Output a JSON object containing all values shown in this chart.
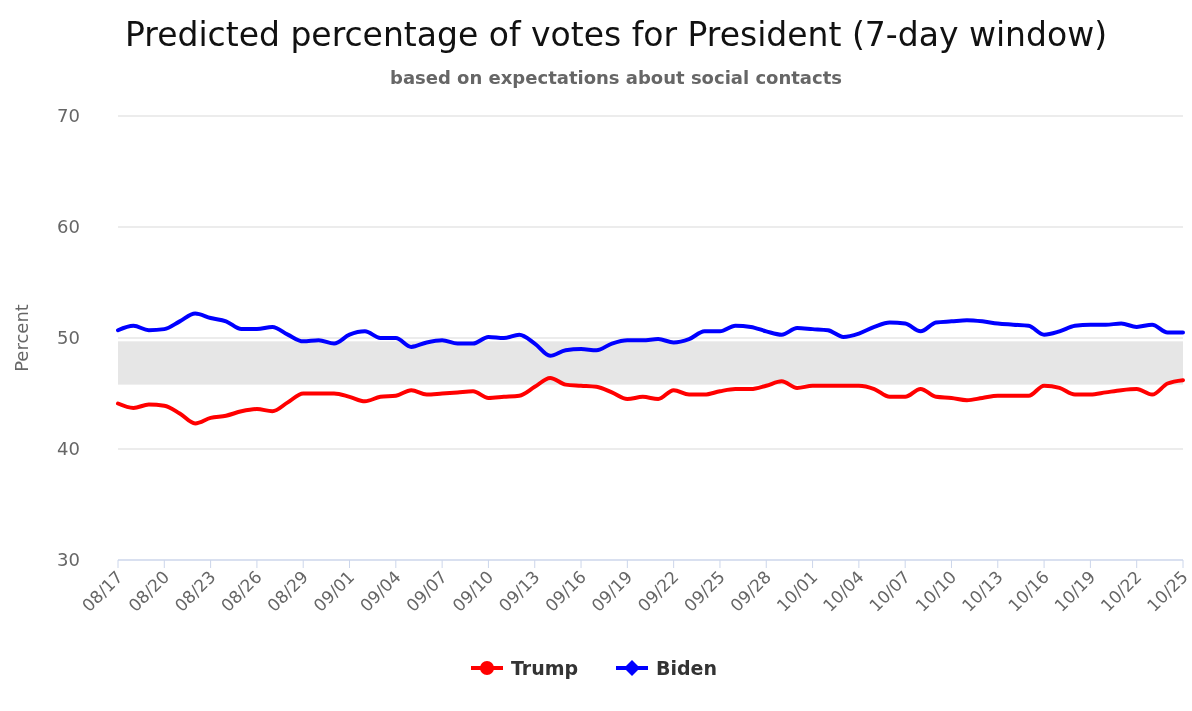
{
  "chart_data": {
    "type": "line",
    "title": "Predicted percentage of votes for President (7-day window)",
    "subtitle": "based on expectations about social contacts",
    "ylabel": "Percent",
    "x": [
      "--08-17",
      "--08-18",
      "--08-19",
      "--08-20",
      "--08-21",
      "--08-22",
      "--08-23",
      "--08-24",
      "--08-25",
      "--08-26",
      "--08-27",
      "--08-28",
      "--08-29",
      "--08-30",
      "--08-31",
      "--09-01",
      "--09-02",
      "--09-03",
      "--09-04",
      "--09-05",
      "--09-06",
      "--09-07",
      "--09-08",
      "--09-09",
      "--09-10",
      "--09-11",
      "--09-12",
      "--09-13",
      "--09-14",
      "--09-15",
      "--09-16",
      "--09-17",
      "--09-18",
      "--09-19",
      "--09-20",
      "--09-21",
      "--09-22",
      "--09-23",
      "--09-24",
      "--09-25",
      "--09-26",
      "--09-27",
      "--09-28",
      "--09-29",
      "--09-30",
      "--10-01",
      "--10-02",
      "--10-03",
      "--10-04",
      "--10-05",
      "--10-06",
      "--10-07",
      "--10-08",
      "--10-09",
      "--10-10",
      "--10-11",
      "--10-12",
      "--10-13",
      "--10-14",
      "--10-15",
      "--10-16",
      "--10-17",
      "--10-18",
      "--10-19",
      "--10-20",
      "--10-21",
      "--10-22",
      "--10-23",
      "--10-24",
      "--10-25"
    ],
    "series": [
      {
        "name": "Trump",
        "color": "#ff0000",
        "values": [
          44.1,
          43.7,
          44.0,
          43.9,
          43.2,
          42.3,
          42.8,
          43.0,
          43.4,
          43.6,
          43.4,
          44.2,
          45.0,
          45.0,
          45.0,
          44.7,
          44.3,
          44.7,
          44.8,
          45.3,
          44.9,
          45.0,
          45.1,
          45.2,
          44.6,
          44.7,
          44.8,
          45.6,
          46.4,
          45.8,
          45.7,
          45.6,
          45.1,
          44.5,
          44.7,
          44.5,
          45.3,
          44.9,
          44.9,
          45.2,
          45.4,
          45.4,
          45.7,
          46.1,
          45.5,
          45.7,
          45.7,
          45.7,
          45.7,
          45.4,
          44.7,
          44.7,
          45.4,
          44.7,
          44.6,
          44.4,
          44.6,
          44.8,
          44.8,
          44.8,
          45.7,
          45.5,
          44.9,
          44.9,
          45.1,
          45.3,
          45.4,
          44.9,
          45.9,
          46.2
        ]
      },
      {
        "name": "Biden",
        "color": "#0000ff",
        "values": [
          50.7,
          51.1,
          50.7,
          50.8,
          51.5,
          52.2,
          51.8,
          51.5,
          50.8,
          50.8,
          51.0,
          50.3,
          49.7,
          49.8,
          49.5,
          50.3,
          50.6,
          50.0,
          50.0,
          49.2,
          49.6,
          49.8,
          49.5,
          49.5,
          50.1,
          50.0,
          50.3,
          49.5,
          48.4,
          48.9,
          49.0,
          48.9,
          49.5,
          49.8,
          49.8,
          49.9,
          49.6,
          49.9,
          50.6,
          50.6,
          51.1,
          51.0,
          50.6,
          50.3,
          50.9,
          50.8,
          50.7,
          50.1,
          50.4,
          51.0,
          51.4,
          51.3,
          50.6,
          51.4,
          51.5,
          51.6,
          51.5,
          51.3,
          51.2,
          51.1,
          50.3,
          50.6,
          51.1,
          51.2,
          51.2,
          51.3,
          51.0,
          51.2,
          50.5,
          50.5
        ]
      }
    ],
    "xlim": [
      "--08-17",
      "--10-25"
    ],
    "xticks": [
      {
        "value": "--08-17",
        "label": "08/17"
      },
      {
        "value": "--08-20",
        "label": "08/20"
      },
      {
        "value": "--08-23",
        "label": "08/23"
      },
      {
        "value": "--08-26",
        "label": "08/26"
      },
      {
        "value": "--08-29",
        "label": "08/29"
      },
      {
        "value": "--09-01",
        "label": "09/01"
      },
      {
        "value": "--09-04",
        "label": "09/04"
      },
      {
        "value": "--09-07",
        "label": "09/07"
      },
      {
        "value": "--09-10",
        "label": "09/10"
      },
      {
        "value": "--09-13",
        "label": "09/13"
      },
      {
        "value": "--09-16",
        "label": "09/16"
      },
      {
        "value": "--09-19",
        "label": "09/19"
      },
      {
        "value": "--09-22",
        "label": "09/22"
      },
      {
        "value": "--09-25",
        "label": "09/25"
      },
      {
        "value": "--09-28",
        "label": "09/28"
      },
      {
        "value": "--10-01",
        "label": "10/01"
      },
      {
        "value": "--10-04",
        "label": "10/04"
      },
      {
        "value": "--10-07",
        "label": "10/07"
      },
      {
        "value": "--10-10",
        "label": "10/10"
      },
      {
        "value": "--10-13",
        "label": "10/13"
      },
      {
        "value": "--10-16",
        "label": "10/16"
      },
      {
        "value": "--10-19",
        "label": "10/19"
      },
      {
        "value": "--10-22",
        "label": "10/22"
      },
      {
        "value": "--10-25",
        "label": "10/25"
      }
    ],
    "bands": [
      {
        "axis": "y",
        "from": 45.8,
        "to": 49.7,
        "color": "#e6e6e6"
      }
    ],
    "ylim": [
      30,
      70
    ],
    "yticks": [
      30,
      40,
      50,
      60,
      70
    ],
    "grid": "y",
    "legend": "bottom"
  }
}
